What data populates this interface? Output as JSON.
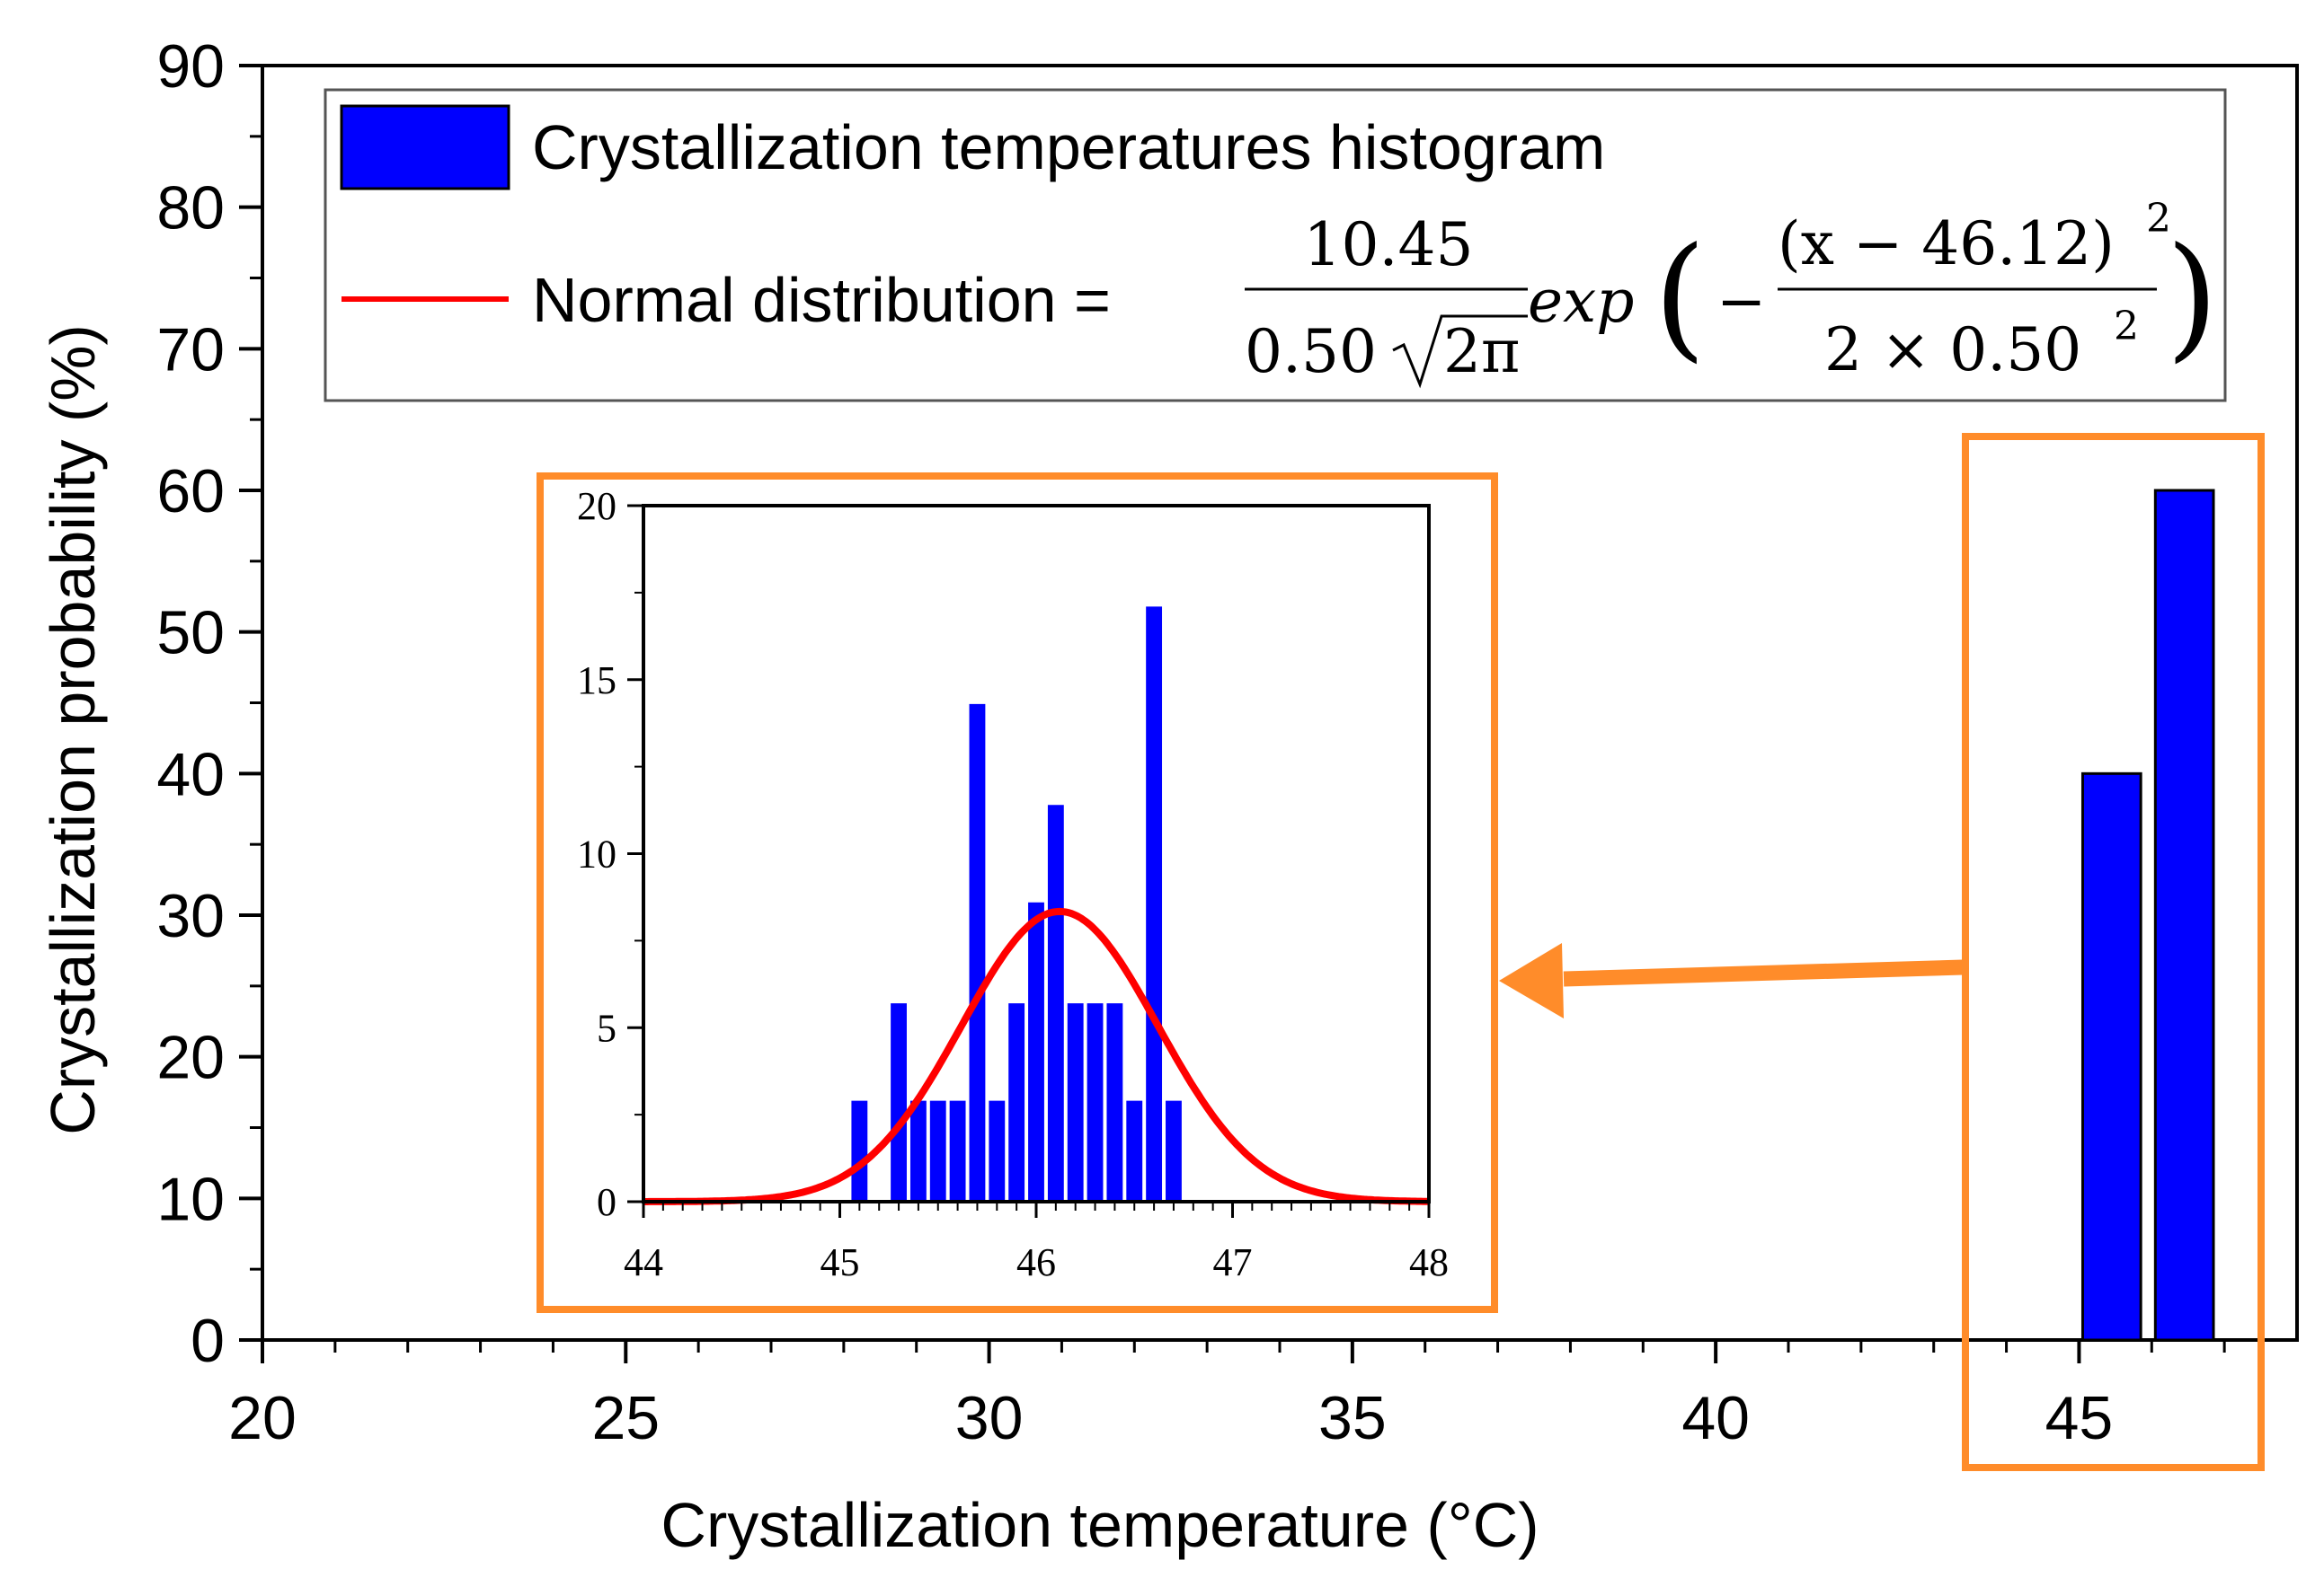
{
  "chart_data": [
    {
      "type": "bar",
      "role": "main",
      "xlabel": "Crystallization temperature (°C)",
      "ylabel": "Crystallization probability (%)",
      "xlim": [
        20,
        48
      ],
      "ylim": [
        0,
        90
      ],
      "xticks": [
        20,
        25,
        30,
        35,
        40,
        45
      ],
      "xtick_labels": [
        "20",
        "25",
        "30",
        "35",
        "40",
        "45"
      ],
      "yticks": [
        0,
        10,
        20,
        30,
        40,
        50,
        60,
        70,
        80,
        90
      ],
      "ytick_labels": [
        "0",
        "10",
        "20",
        "30",
        "40",
        "50",
        "60",
        "70",
        "80",
        "90"
      ],
      "bars": [
        {
          "x_start": 45.05,
          "x_end": 45.85,
          "value": 40
        },
        {
          "x_start": 46.05,
          "x_end": 46.85,
          "value": 60
        }
      ],
      "bar_color": "#0000ff",
      "legend": {
        "position": "top",
        "entries": [
          {
            "label": "Crystallization temperatures histogram",
            "kind": "bar",
            "color": "#0000ff"
          },
          {
            "label": "Normal distribution =",
            "kind": "line",
            "color": "#ff0000"
          }
        ],
        "formula": {
          "numerator": "10.45",
          "denominator_coef": "0.50",
          "sqrt_arg": "2π",
          "func": "exp",
          "open_paren": "(",
          "close_paren": ")",
          "minus": "−",
          "inner_numerator": "(x − 46.12)",
          "inner_numerator_exp": "2",
          "inner_denominator": "2 × 0.50",
          "inner_denominator_exp": "2"
        }
      }
    },
    {
      "type": "bar",
      "role": "inset",
      "xlim": [
        44,
        48
      ],
      "ylim": [
        0,
        20
      ],
      "xticks": [
        44,
        45,
        46,
        47,
        48
      ],
      "xtick_labels": [
        "44",
        "45",
        "46",
        "47",
        "48"
      ],
      "yticks": [
        0,
        5,
        10,
        15,
        20
      ],
      "ytick_labels": [
        "0",
        "5",
        "10",
        "15",
        "20"
      ],
      "bin_width": 0.1,
      "bars": [
        {
          "x": 45.1,
          "value": 2.9
        },
        {
          "x": 45.3,
          "value": 5.7
        },
        {
          "x": 45.4,
          "value": 2.9
        },
        {
          "x": 45.5,
          "value": 2.9
        },
        {
          "x": 45.6,
          "value": 2.9
        },
        {
          "x": 45.7,
          "value": 14.3
        },
        {
          "x": 45.8,
          "value": 2.9
        },
        {
          "x": 45.9,
          "value": 5.7
        },
        {
          "x": 46.0,
          "value": 8.6
        },
        {
          "x": 46.1,
          "value": 11.4
        },
        {
          "x": 46.2,
          "value": 5.7
        },
        {
          "x": 46.3,
          "value": 5.7
        },
        {
          "x": 46.4,
          "value": 5.7
        },
        {
          "x": 46.5,
          "value": 2.9
        },
        {
          "x": 46.6,
          "value": 17.1
        },
        {
          "x": 46.7,
          "value": 2.9
        }
      ],
      "bar_color": "#0000ff",
      "curve": {
        "type": "normal",
        "amplitude": 10.45,
        "mu": 46.12,
        "sigma": 0.5,
        "color": "#ff0000"
      }
    }
  ],
  "annotation_color": "#ff8c2a"
}
